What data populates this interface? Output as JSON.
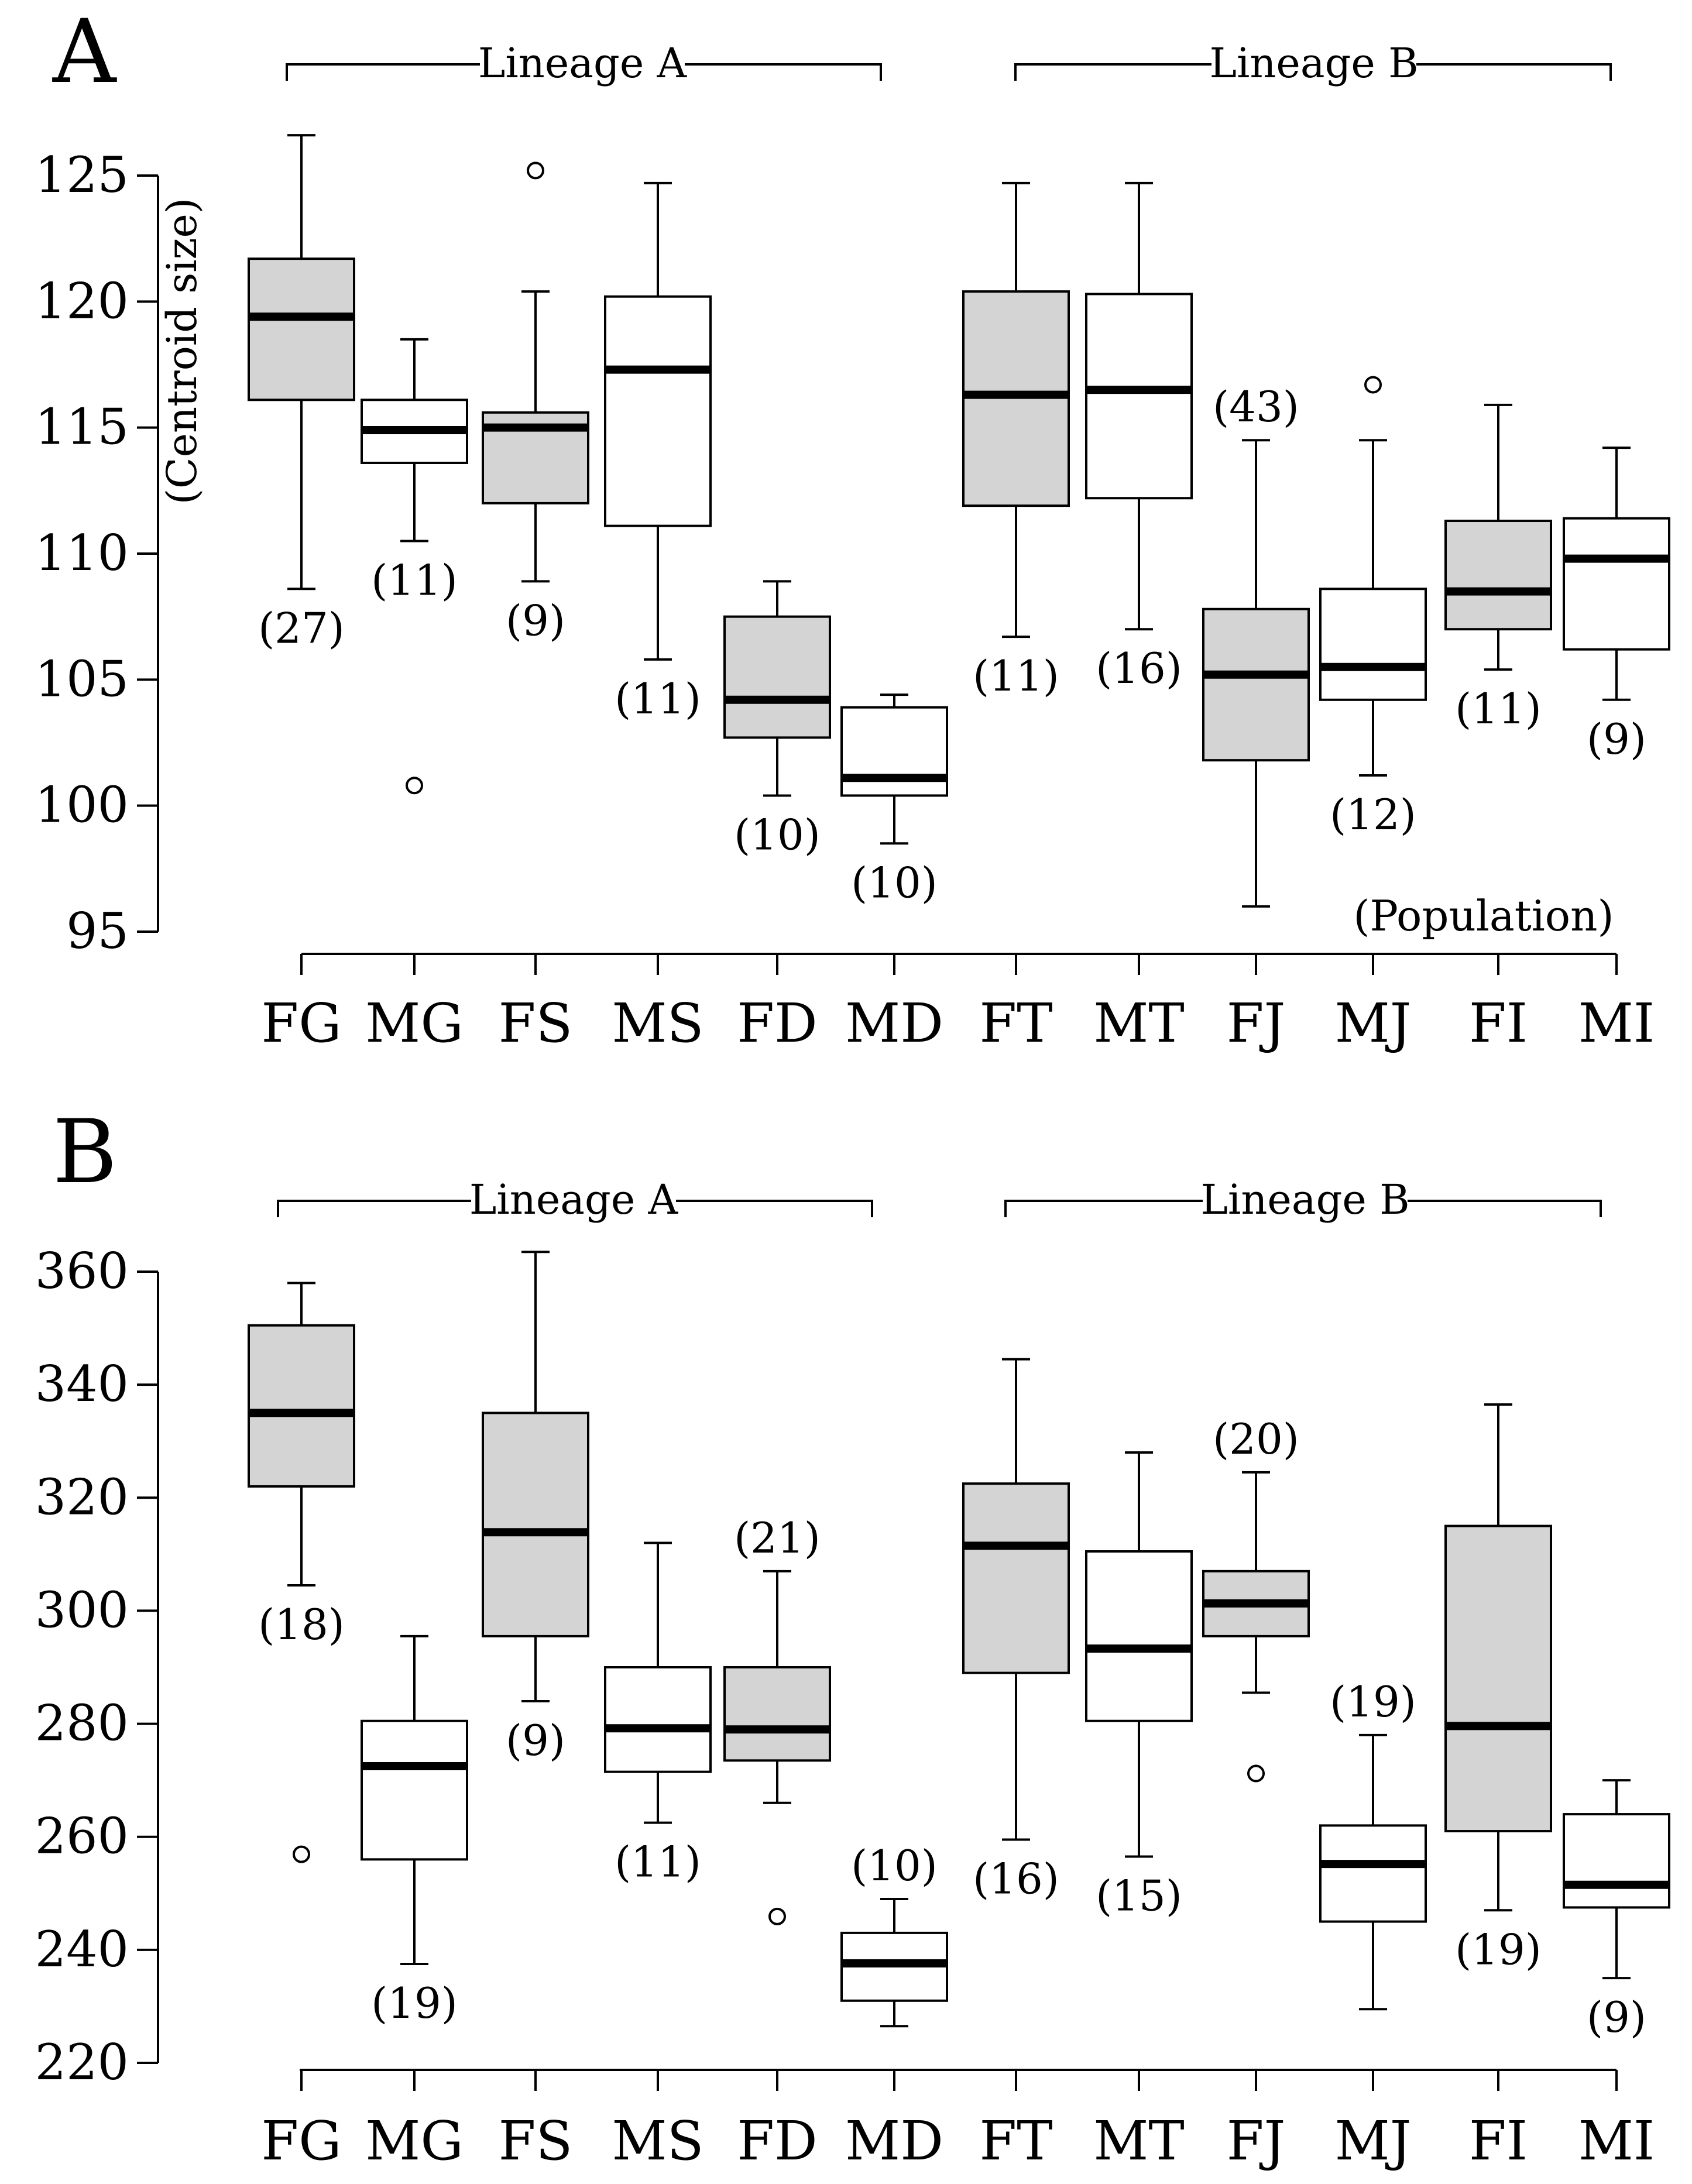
{
  "colors": {
    "filled": "#d4d4d4",
    "open": "#ffffff",
    "ink": "#000000"
  },
  "chart_data": [
    {
      "panel": "A",
      "type": "box",
      "ylabel": "(Centroid size)",
      "xlabel": "(Population)",
      "ylim": [
        95,
        126
      ],
      "yticks": [
        95,
        100,
        105,
        110,
        115,
        120,
        125
      ],
      "lineage_labels": [
        "Lineage A",
        "Lineage B"
      ],
      "categories": [
        "FG",
        "MG",
        "FS",
        "MS",
        "FD",
        "MD",
        "FT",
        "MT",
        "FJ",
        "MJ",
        "FI",
        "MI"
      ],
      "boxes": [
        {
          "name": "FG",
          "filled": true,
          "whisker_low": 108.6,
          "q1": 116.1,
          "median": 119.4,
          "q3": 121.7,
          "whisker_high": 126.6,
          "outliers": [],
          "n": "(27)"
        },
        {
          "name": "MG",
          "filled": false,
          "whisker_low": 110.5,
          "q1": 113.6,
          "median": 114.9,
          "q3": 116.1,
          "whisker_high": 118.5,
          "outliers": [
            100.8
          ],
          "n": "(11)"
        },
        {
          "name": "FS",
          "filled": true,
          "whisker_low": 108.9,
          "q1": 112.0,
          "median": 115.0,
          "q3": 115.6,
          "whisker_high": 120.4,
          "outliers": [
            125.2
          ],
          "n": "(9)"
        },
        {
          "name": "MS",
          "filled": false,
          "whisker_low": 105.8,
          "q1": 111.1,
          "median": 117.3,
          "q3": 120.2,
          "whisker_high": 124.7,
          "outliers": [],
          "n": "(11)"
        },
        {
          "name": "FD",
          "filled": true,
          "whisker_low": 100.4,
          "q1": 102.7,
          "median": 104.2,
          "q3": 107.5,
          "whisker_high": 108.9,
          "outliers": [],
          "n": "(10)"
        },
        {
          "name": "MD",
          "filled": false,
          "whisker_low": 98.5,
          "q1": 100.4,
          "median": 101.1,
          "q3": 103.9,
          "whisker_high": 104.4,
          "outliers": [],
          "n": "(10)"
        },
        {
          "name": "FT",
          "filled": true,
          "whisker_low": 106.7,
          "q1": 111.9,
          "median": 116.3,
          "q3": 120.4,
          "whisker_high": 124.7,
          "outliers": [],
          "n": "(11)"
        },
        {
          "name": "MT",
          "filled": false,
          "whisker_low": 107.0,
          "q1": 112.2,
          "median": 116.5,
          "q3": 120.3,
          "whisker_high": 124.7,
          "outliers": [],
          "n": "(16)"
        },
        {
          "name": "FJ",
          "filled": true,
          "whisker_low": 96.0,
          "q1": 101.8,
          "median": 105.2,
          "q3": 107.8,
          "whisker_high": 114.5,
          "outliers": [],
          "n": "(43)"
        },
        {
          "name": "MJ",
          "filled": false,
          "whisker_low": 101.2,
          "q1": 104.2,
          "median": 105.5,
          "q3": 108.6,
          "whisker_high": 114.5,
          "outliers": [
            116.7
          ],
          "n": "(12)"
        },
        {
          "name": "FI",
          "filled": true,
          "whisker_low": 105.4,
          "q1": 107.0,
          "median": 108.5,
          "q3": 111.3,
          "whisker_high": 115.9,
          "outliers": [],
          "n": "(11)"
        },
        {
          "name": "MI",
          "filled": false,
          "whisker_low": 104.2,
          "q1": 106.2,
          "median": 109.8,
          "q3": 111.4,
          "whisker_high": 114.2,
          "outliers": [],
          "n": "(9)"
        }
      ]
    },
    {
      "panel": "B",
      "type": "box",
      "ylabel": "",
      "xlabel": "",
      "ylim": [
        220,
        364
      ],
      "yticks": [
        220,
        240,
        260,
        280,
        300,
        320,
        340,
        360
      ],
      "lineage_labels": [
        "Lineage A",
        "Lineage B"
      ],
      "categories": [
        "FG",
        "MG",
        "FS",
        "MS",
        "FD",
        "MD",
        "FT",
        "MT",
        "FJ",
        "MJ",
        "FI",
        "MI"
      ],
      "boxes": [
        {
          "name": "FG",
          "filled": true,
          "whisker_low": 304.5,
          "q1": 322.0,
          "median": 335.0,
          "q3": 350.5,
          "whisker_high": 358.0,
          "outliers": [
            256.9
          ],
          "n": "(18)"
        },
        {
          "name": "MG",
          "filled": false,
          "whisker_low": 237.5,
          "q1": 256.0,
          "median": 272.5,
          "q3": 280.5,
          "whisker_high": 295.5,
          "outliers": [],
          "n": "(19)"
        },
        {
          "name": "FS",
          "filled": true,
          "whisker_low": 284.0,
          "q1": 295.5,
          "median": 313.9,
          "q3": 335.0,
          "whisker_high": 363.5,
          "outliers": [],
          "n": "(9)"
        },
        {
          "name": "MS",
          "filled": false,
          "whisker_low": 262.5,
          "q1": 271.5,
          "median": 279.2,
          "q3": 290.0,
          "whisker_high": 312.0,
          "outliers": [],
          "n": "(11)"
        },
        {
          "name": "FD",
          "filled": true,
          "whisker_low": 266.0,
          "q1": 273.5,
          "median": 279.0,
          "q3": 290.0,
          "whisker_high": 307.0,
          "outliers": [
            245.9
          ],
          "n": "(21)"
        },
        {
          "name": "MD",
          "filled": false,
          "whisker_low": 226.5,
          "q1": 231.0,
          "median": 237.6,
          "q3": 243.0,
          "whisker_high": 249.0,
          "outliers": [],
          "n": "(10)"
        },
        {
          "name": "FT",
          "filled": true,
          "whisker_low": 259.5,
          "q1": 289.0,
          "median": 311.5,
          "q3": 322.5,
          "whisker_high": 344.5,
          "outliers": [],
          "n": "(16)"
        },
        {
          "name": "MT",
          "filled": false,
          "whisker_low": 256.5,
          "q1": 280.5,
          "median": 293.3,
          "q3": 310.5,
          "whisker_high": 328.0,
          "outliers": [],
          "n": "(15)"
        },
        {
          "name": "FJ",
          "filled": true,
          "whisker_low": 285.5,
          "q1": 295.5,
          "median": 301.3,
          "q3": 307.0,
          "whisker_high": 324.5,
          "outliers": [
            271.2
          ],
          "n": "(20)"
        },
        {
          "name": "MJ",
          "filled": false,
          "whisker_low": 229.5,
          "q1": 245.0,
          "median": 255.2,
          "q3": 262.0,
          "whisker_high": 278.0,
          "outliers": [],
          "n": "(19)"
        },
        {
          "name": "FI",
          "filled": true,
          "whisker_low": 247.0,
          "q1": 261.0,
          "median": 279.6,
          "q3": 315.0,
          "whisker_high": 336.5,
          "outliers": [],
          "n": "(19)"
        },
        {
          "name": "MI",
          "filled": false,
          "whisker_low": 235.0,
          "q1": 247.5,
          "median": 251.5,
          "q3": 264.0,
          "whisker_high": 270.0,
          "outliers": [],
          "n": "(9)"
        }
      ]
    }
  ]
}
